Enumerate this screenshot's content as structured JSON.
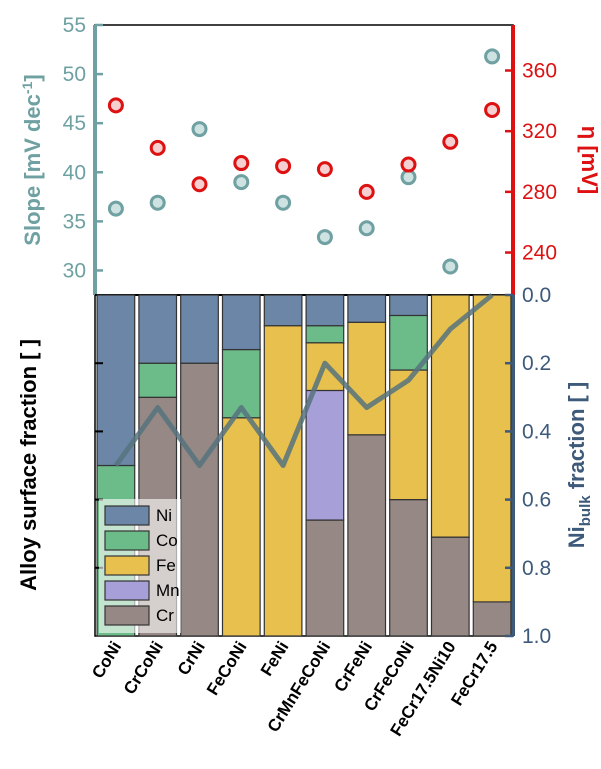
{
  "chart_data": [
    {
      "type": "scatter",
      "categories": [
        "CoNi",
        "CrCoNi",
        "CrNi",
        "FeCoNi",
        "FeNi",
        "CrMnFeCoNi",
        "CrFeNi",
        "CrFeCoNi",
        "FeCr17.5Ni10",
        "FeCr17.5"
      ],
      "series": [
        {
          "values": [
            36.3,
            36.9,
            44.4,
            39.0,
            36.9,
            33.4,
            34.3,
            39.5,
            30.4,
            51.8
          ],
          "color": "#6fa0a2"
        },
        {
          "values": [
            337,
            309,
            285,
            299,
            297,
            295,
            280,
            298,
            313,
            334
          ],
          "color": "#dd1111"
        }
      ],
      "left_axis": {
        "label_main": "Slope [mV dec",
        "label_sup": "-1",
        "label_close": "]",
        "ylim": [
          27.5,
          55
        ],
        "ticks": [
          "30",
          "35",
          "40",
          "45",
          "50",
          "55"
        ],
        "color": "#6fa0a2"
      },
      "right_axis": {
        "label": "η [mV]",
        "ylim": [
          212,
          390
        ],
        "ticks": [
          "240",
          "280",
          "320",
          "360"
        ],
        "color": "#dd1111"
      }
    },
    {
      "type": "bar",
      "stacked": true,
      "categories": [
        "CoNi",
        "CrCoNi",
        "CrNi",
        "FeCoNi",
        "FeNi",
        "CrMnFeCoNi",
        "CrFeNi",
        "CrFeCoNi",
        "FeCr17.5Ni10",
        "FeCr17.5"
      ],
      "series": [
        {
          "name": "Cr",
          "values": [
            0,
            0.7,
            0.8,
            0,
            0,
            0.34,
            0.59,
            0.4,
            0.29,
            0.1
          ],
          "color": "#968985"
        },
        {
          "name": "Mn",
          "values": [
            0,
            0,
            0,
            0,
            0,
            0.38,
            0,
            0,
            0,
            0
          ],
          "color": "#a79fd8"
        },
        {
          "name": "Fe",
          "values": [
            0,
            0,
            0,
            0.64,
            0.91,
            0.14,
            0.33,
            0.38,
            0.71,
            0.9
          ],
          "color": "#e8c04e"
        },
        {
          "name": "Co",
          "values": [
            0.5,
            0.1,
            0,
            0.2,
            0,
            0.05,
            0,
            0.16,
            0,
            0
          ],
          "color": "#6cbc8a"
        },
        {
          "name": "Ni",
          "values": [
            0.5,
            0.2,
            0.2,
            0.16,
            0.09,
            0.09,
            0.08,
            0.06,
            0,
            0
          ],
          "color": "#6b86a6"
        }
      ],
      "line": {
        "values": [
          0.5,
          0.33,
          0.5,
          0.33,
          0.5,
          0.2,
          0.33,
          0.25,
          0.1,
          0.0
        ],
        "color": "#56737e"
      },
      "left_axis": {
        "label": "Alloy surface fraction [ ]",
        "ylim": [
          0,
          1
        ]
      },
      "right_axis": {
        "label_main": "Ni",
        "label_sub": "bulk",
        "label_close": " fraction [ ]",
        "ylim": [
          0,
          1
        ],
        "inverted": true,
        "ticks": [
          "0.0",
          "0.2",
          "0.4",
          "0.6",
          "0.8",
          "1.0"
        ],
        "color": "#3d5a7a"
      },
      "legend": {
        "entries": [
          "Ni",
          "Co",
          "Fe",
          "Mn",
          "Cr"
        ],
        "placement": "bottom-left"
      }
    }
  ]
}
